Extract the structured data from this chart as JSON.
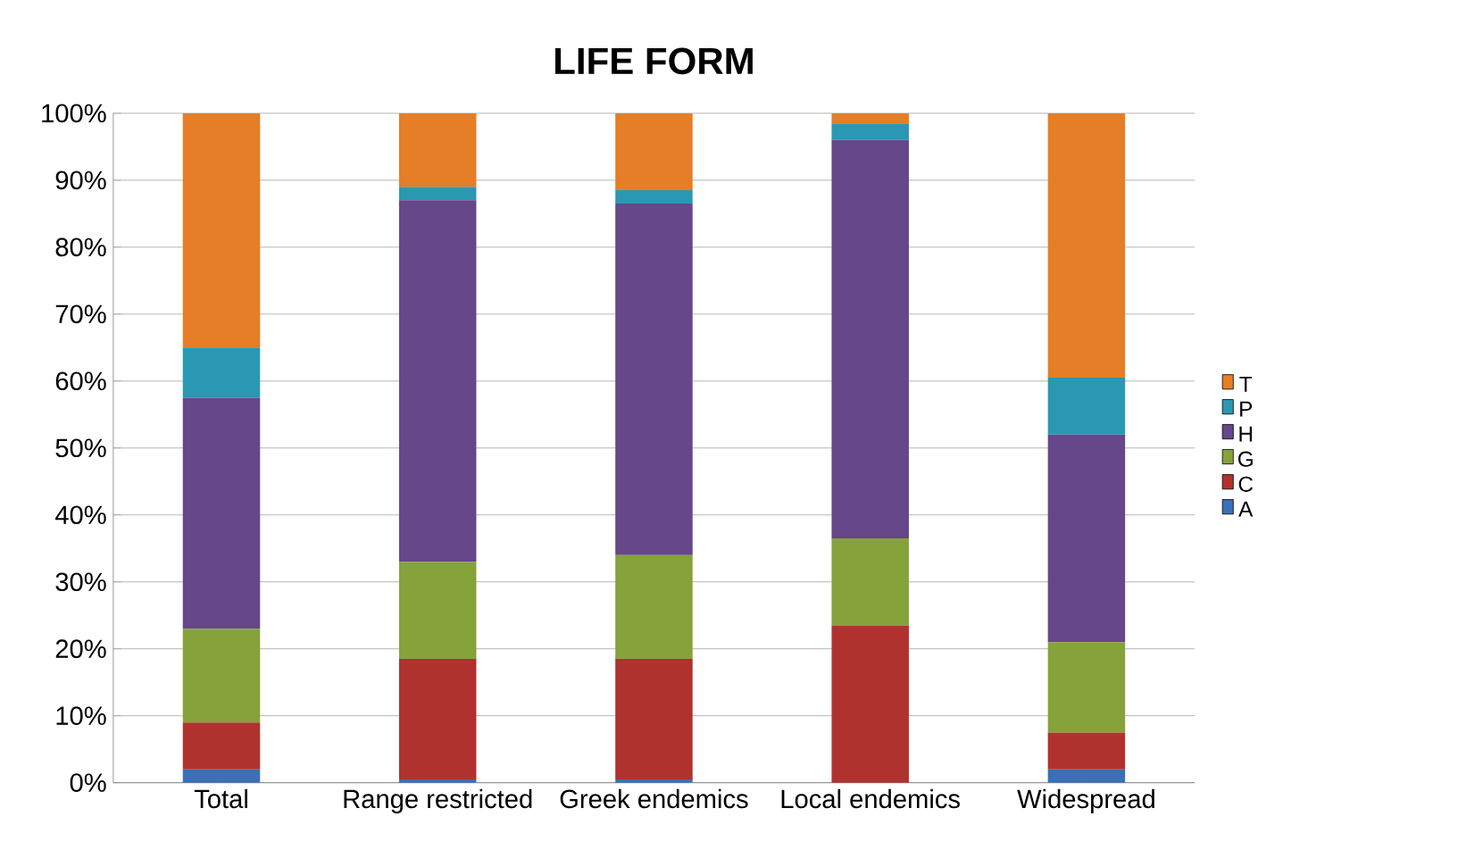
{
  "chart_data": {
    "type": "bar",
    "title": "LIFE FORM",
    "stacked": true,
    "categories": [
      "Total",
      "Range restricted",
      "Greek endemics",
      "Local endemics",
      "Widespread"
    ],
    "series": [
      {
        "name": "A",
        "color": "#3b6fb6",
        "values": [
          2,
          0.5,
          0.5,
          0,
          2
        ]
      },
      {
        "name": "C",
        "color": "#b0322e",
        "values": [
          7,
          18,
          18,
          23.5,
          5.5
        ]
      },
      {
        "name": "G",
        "color": "#86a23a",
        "values": [
          14,
          14.5,
          15.5,
          13,
          13.5
        ]
      },
      {
        "name": "H",
        "color": "#65478a",
        "values": [
          34.5,
          54,
          52.5,
          59.5,
          31
        ]
      },
      {
        "name": "P",
        "color": "#2a98b3",
        "values": [
          7.5,
          2,
          2,
          2.5,
          8.5
        ]
      },
      {
        "name": "T",
        "color": "#e57e26",
        "values": [
          35,
          11,
          11.5,
          1.5,
          39.5
        ]
      }
    ],
    "ylim": [
      0,
      100
    ],
    "yticks": [
      {
        "value": 0,
        "label": "0%"
      },
      {
        "value": 10,
        "label": "10%"
      },
      {
        "value": 20,
        "label": "20%"
      },
      {
        "value": 30,
        "label": "30%"
      },
      {
        "value": 40,
        "label": "40%"
      },
      {
        "value": 50,
        "label": "50%"
      },
      {
        "value": 60,
        "label": "60%"
      },
      {
        "value": 70,
        "label": "70%"
      },
      {
        "value": 80,
        "label": "80%"
      },
      {
        "value": 90,
        "label": "90%"
      },
      {
        "value": 100,
        "label": "100%"
      }
    ],
    "grid": "y",
    "legend": "right"
  }
}
